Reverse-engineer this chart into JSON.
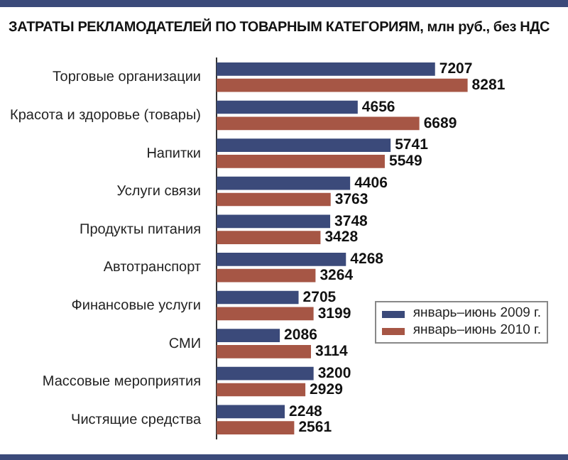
{
  "chart_data": {
    "type": "bar",
    "orientation": "horizontal",
    "title": "ЗАТРАТЫ РЕКЛАМОДАТЕЛЕЙ ПО ТОВАРНЫМ КАТЕГОРИЯМ, млн руб., без НДС",
    "categories": [
      "Торговые организации",
      "Красота и здоровье (товары)",
      "Напитки",
      "Услуги связи",
      "Продукты питания",
      "Автотранспорт",
      "Финансовые услуги",
      "СМИ",
      "Массовые мероприятия",
      "Чистящие средства"
    ],
    "series": [
      {
        "name": "январь–июнь 2009 г.",
        "color": "#3b4a7a",
        "values": [
          7207,
          4656,
          5741,
          4406,
          3748,
          4268,
          2705,
          2086,
          3200,
          2248
        ]
      },
      {
        "name": "январь–июнь 2010 г.",
        "color": "#a65645",
        "values": [
          8281,
          6689,
          5549,
          3763,
          3428,
          3264,
          3199,
          3114,
          2929,
          2561
        ]
      }
    ],
    "data_labels": true,
    "legend": "right"
  }
}
